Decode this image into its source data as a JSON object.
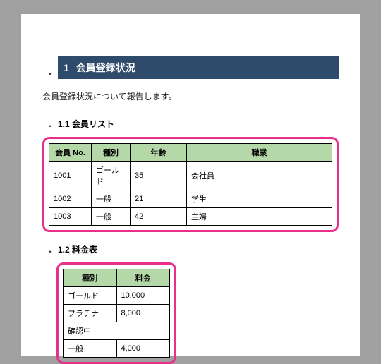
{
  "heading": {
    "num": "1",
    "title": "会員登録状況"
  },
  "intro": "会員登録状況について報告します。",
  "section11": {
    "num": "1.1",
    "title": "会員リスト"
  },
  "table1": {
    "headers": {
      "no": "会員 No.",
      "type": "種別",
      "age": "年齢",
      "job": "職業"
    },
    "rows": [
      {
        "no": "1001",
        "type": "ゴールド",
        "age": "35",
        "job": "会社員"
      },
      {
        "no": "1002",
        "type": "一般",
        "age": "21",
        "job": "学生"
      },
      {
        "no": "1003",
        "type": "一般",
        "age": "42",
        "job": "主婦"
      }
    ]
  },
  "section12": {
    "num": "1.2",
    "title": "料金表"
  },
  "table2": {
    "headers": {
      "type": "種別",
      "price": "料金"
    },
    "rows": [
      {
        "type": "ゴールド",
        "price": "10,000"
      },
      {
        "type": "プラチナ",
        "price": "8,000"
      },
      {
        "type": "確認中",
        "price": null,
        "merged": true
      },
      {
        "type": "一般",
        "price": "4,000"
      }
    ]
  },
  "colors": {
    "page_bg": "#ffffff",
    "outer_bg": "#a0a0a0",
    "heading_bg": "#2f4b6b",
    "heading_fg": "#ffffff",
    "table_header_bg": "#b5d8a8",
    "highlight_border": "#e82f8a",
    "table_border": "#000000"
  }
}
